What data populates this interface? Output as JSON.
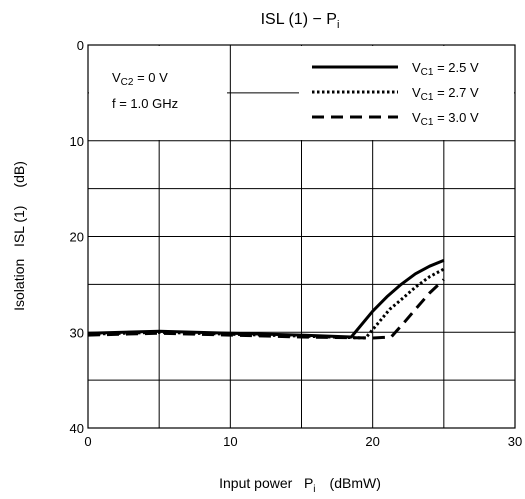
{
  "chart_data": {
    "type": "line",
    "title": {
      "main": "ISL (1) − P",
      "sub": "i"
    },
    "xlabel": {
      "main": "Input power   P",
      "sub": "i",
      "unit": "(dBmW)"
    },
    "ylabel": {
      "main": "Isolation   ISL (1)",
      "unit": "(dB)"
    },
    "xlim": [
      0,
      30
    ],
    "ylim": [
      0,
      40
    ],
    "y_inverted": true,
    "grid": true,
    "x_ticks": [
      0,
      10,
      20,
      30
    ],
    "x_tick_labels": [
      "0",
      "10",
      "20",
      "30"
    ],
    "y_ticks": [
      0,
      10,
      20,
      30,
      40
    ],
    "y_tick_labels": [
      "0",
      "10",
      "20",
      "30",
      "40"
    ],
    "conditions": [
      {
        "pre": "V",
        "sub": "C2",
        "post": " = 0 V"
      },
      {
        "pre": "f = 1.0 GHz",
        "sub": "",
        "post": ""
      }
    ],
    "legend_position": "top-right",
    "series": [
      {
        "name": {
          "pre": "V",
          "sub": "C1",
          "post": " = 2.5 V"
        },
        "dash": "solid",
        "x": [
          0,
          5,
          10,
          15,
          18.5,
          20,
          21,
          22,
          23,
          24,
          25
        ],
        "y": [
          30.1,
          29.9,
          30.1,
          30.3,
          30.5,
          27.8,
          26.3,
          25.0,
          23.9,
          23.1,
          22.5
        ]
      },
      {
        "name": {
          "pre": "V",
          "sub": "C1",
          "post": " = 2.7 V"
        },
        "dash": "dotted",
        "x": [
          0,
          5,
          10,
          15,
          19.5,
          20.3,
          21.2,
          22,
          23,
          24,
          25
        ],
        "y": [
          30.2,
          30.0,
          30.2,
          30.4,
          30.6,
          29.2,
          27.6,
          26.6,
          25.3,
          24.2,
          23.4
        ]
      },
      {
        "name": {
          "pre": "V",
          "sub": "C1",
          "post": " = 3.0 V"
        },
        "dash": "dashed",
        "x": [
          0,
          5,
          10,
          15,
          20,
          21.3,
          22.2,
          23,
          24,
          25
        ],
        "y": [
          30.3,
          30.1,
          30.3,
          30.5,
          30.6,
          30.5,
          29.0,
          27.6,
          25.9,
          24.5
        ]
      }
    ]
  }
}
